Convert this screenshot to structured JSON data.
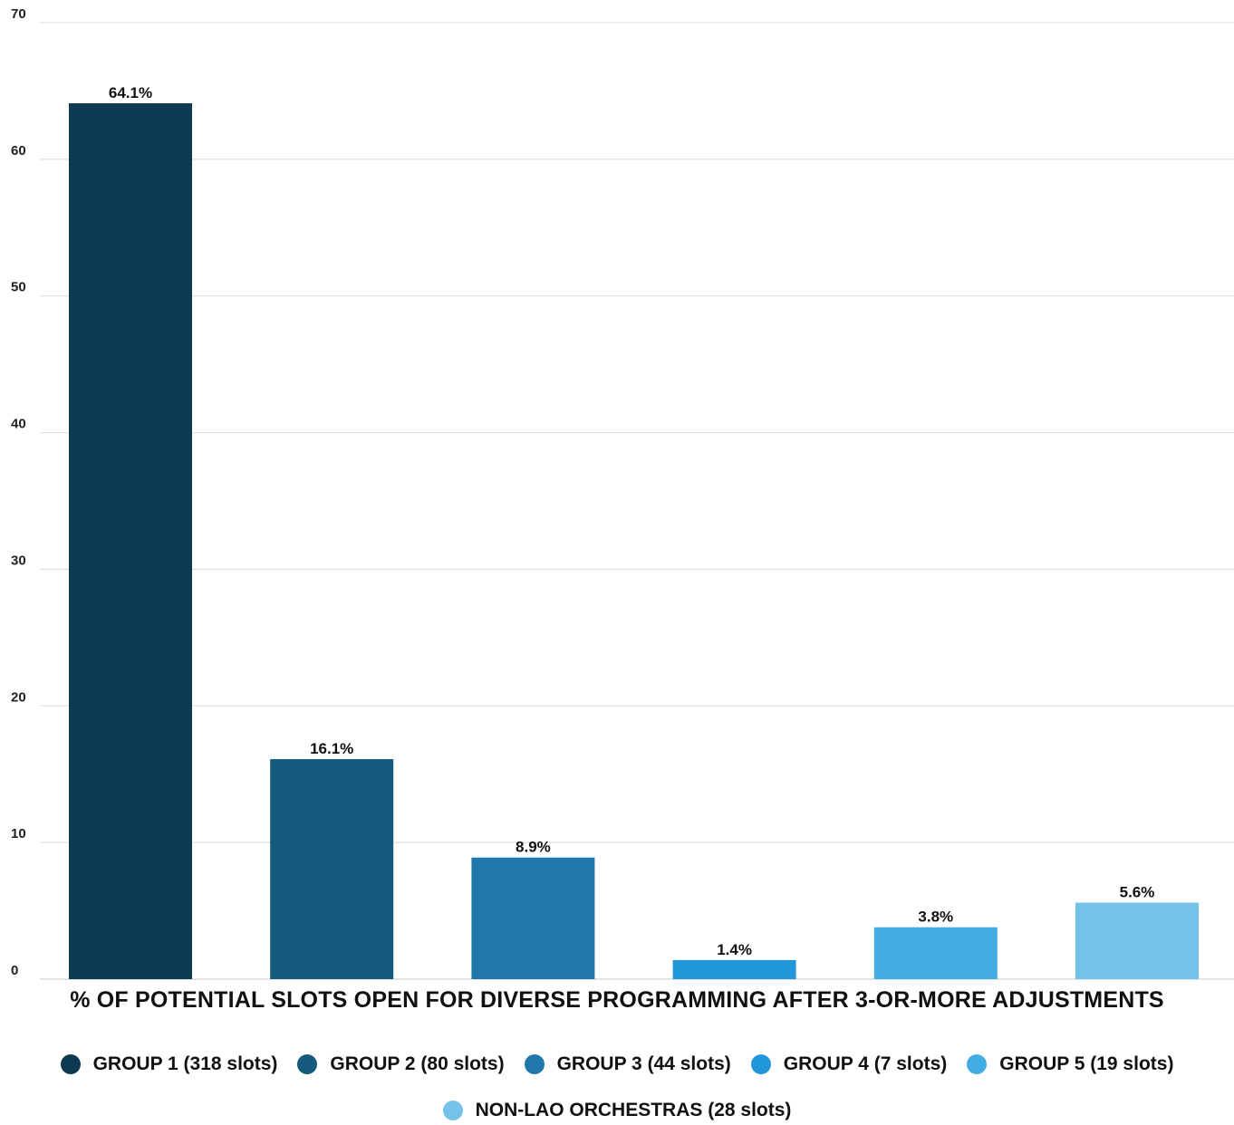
{
  "chart_data": {
    "type": "bar",
    "categories": [
      "GROUP 1 (318 slots)",
      "GROUP 2 (80 slots)",
      "GROUP 3 (44 slots)",
      "GROUP 4 (7 slots)",
      "GROUP 5 (19 slots)",
      "NON-LAO ORCHESTRAS (28 slots)"
    ],
    "values": [
      64.1,
      16.1,
      8.9,
      1.4,
      3.8,
      5.6
    ],
    "data_labels": [
      "64.1%",
      "16.1%",
      "8.9%",
      "1.4%",
      "3.8%",
      "5.6%"
    ],
    "colors": [
      "#0d3a52",
      "#155a7c",
      "#1f77aa",
      "#2196d8",
      "#42ade3",
      "#74c2ea"
    ],
    "title": "",
    "xlabel": "% OF POTENTIAL SLOTS OPEN FOR DIVERSE PROGRAMMING AFTER 3-OR-MORE ADJUSTMENTS",
    "ylabel": "",
    "ylim": [
      0,
      70
    ],
    "yticks": [
      0,
      10,
      20,
      30,
      40,
      50,
      60,
      70
    ],
    "grid": true,
    "legend_position": "bottom",
    "gridline_color": "#d9d9d9"
  }
}
